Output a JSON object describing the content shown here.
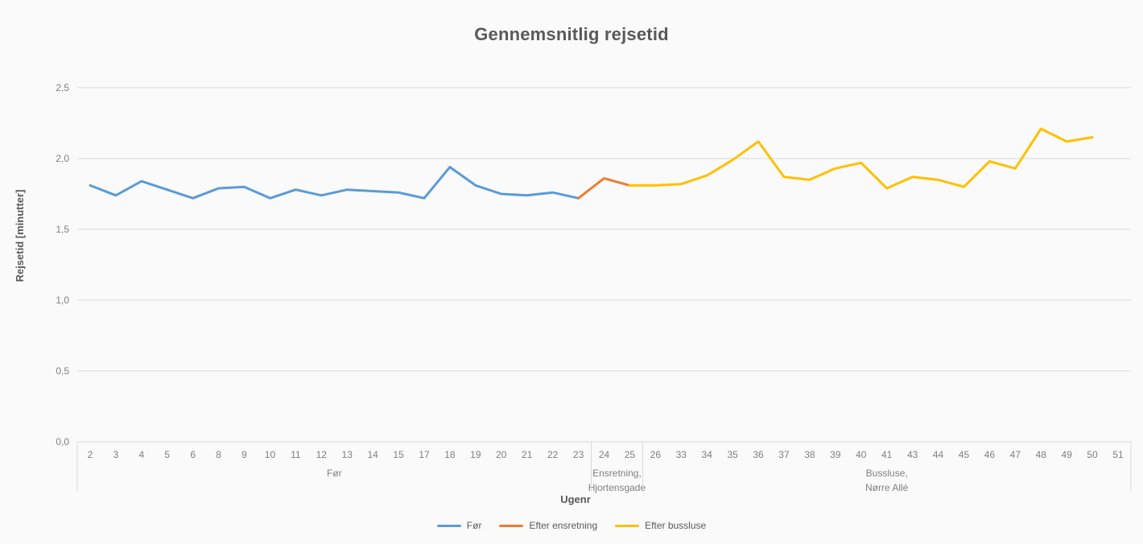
{
  "title": "Gennemsnitlig rejsetid",
  "colors": {
    "grid": "#d9d9d9",
    "tick_text": "#7f7f7f",
    "title_text": "#595959",
    "background": "#fafafb"
  },
  "chart_data": {
    "type": "line",
    "title": "Gennemsnitlig rejsetid",
    "xlabel": "Ugenr",
    "ylabel": "Rejsetid [minutter]",
    "ylim": [
      0,
      2.5
    ],
    "ytick_step": 0.5,
    "ytick_labels": [
      "0,0",
      "0,5",
      "1,0",
      "1,5",
      "2,0",
      "2,5"
    ],
    "grid": true,
    "legend_position": "bottom",
    "categories": [
      "2",
      "3",
      "4",
      "5",
      "6",
      "8",
      "9",
      "10",
      "11",
      "12",
      "13",
      "14",
      "15",
      "17",
      "18",
      "19",
      "20",
      "21",
      "22",
      "23",
      "24",
      "25",
      "26",
      "33",
      "34",
      "35",
      "36",
      "37",
      "38",
      "39",
      "40",
      "41",
      "43",
      "44",
      "45",
      "46",
      "47",
      "48",
      "49",
      "50",
      "51"
    ],
    "series": [
      {
        "name": "Før",
        "color": "#5b9bd5",
        "values": [
          1.81,
          1.74,
          1.84,
          1.78,
          1.72,
          1.79,
          1.8,
          1.72,
          1.78,
          1.74,
          1.78,
          1.77,
          1.76,
          1.72,
          1.94,
          1.81,
          1.75,
          1.74,
          1.76,
          1.72,
          null,
          null,
          null,
          null,
          null,
          null,
          null,
          null,
          null,
          null,
          null,
          null,
          null,
          null,
          null,
          null,
          null,
          null,
          null,
          null,
          null
        ]
      },
      {
        "name": "Efter ensretning",
        "color": "#ed7d31",
        "values": [
          null,
          null,
          null,
          null,
          null,
          null,
          null,
          null,
          null,
          null,
          null,
          null,
          null,
          null,
          null,
          null,
          null,
          null,
          null,
          1.72,
          1.86,
          1.81,
          null,
          null,
          null,
          null,
          null,
          null,
          null,
          null,
          null,
          null,
          null,
          null,
          null,
          null,
          null,
          null,
          null,
          null,
          null
        ]
      },
      {
        "name": "Efter bussluse",
        "color": "#ffc000",
        "values": [
          null,
          null,
          null,
          null,
          null,
          null,
          null,
          null,
          null,
          null,
          null,
          null,
          null,
          null,
          null,
          null,
          null,
          null,
          null,
          null,
          null,
          1.81,
          1.81,
          1.82,
          1.88,
          1.99,
          2.12,
          1.87,
          1.85,
          1.93,
          1.97,
          1.79,
          1.87,
          1.85,
          1.8,
          1.98,
          1.93,
          2.21,
          2.12,
          2.15,
          null
        ]
      }
    ],
    "groups": [
      {
        "label_lines": [
          "Før"
        ],
        "start": "2",
        "end": "23"
      },
      {
        "label_lines": [
          "Ensretning,",
          "Hjortensgade"
        ],
        "start": "24",
        "end": "25"
      },
      {
        "label_lines": [
          "Bussluse,",
          "Nørre Allé"
        ],
        "start": "26",
        "end": "51"
      }
    ]
  }
}
